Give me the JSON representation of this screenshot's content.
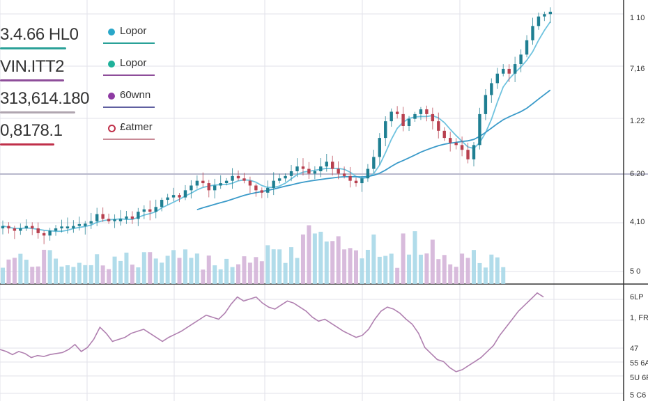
{
  "colors": {
    "bull": "#1f7f92",
    "bear": "#b8404f",
    "ma_short": "#6fc3df",
    "ma_long": "#3a9ac9",
    "rsi": "#b080b0",
    "vol_up": "#a8d8e8",
    "vol_down": "#d4b4d8",
    "grid": "#e2e2ea"
  },
  "readout": [
    {
      "value": "3.4.66 HL0",
      "color": "#2aa198"
    },
    {
      "value": "VIN.ITT2",
      "color": "#8e4e9a"
    },
    {
      "value": "313,614.180",
      "color": "#b0a6b0"
    },
    {
      "value": "0,8178.1",
      "color": "#c0304a"
    }
  ],
  "legend": [
    {
      "label": "Lopor",
      "dot_color": "#2aa7c9",
      "ul_color": "#2aa198"
    },
    {
      "label": "Lopor",
      "dot_color": "#1fb19a",
      "ul_color": "#8e4e9a"
    },
    {
      "label": "60wnn",
      "dot_color": "#8e3aa3",
      "ul_color": "#5f5fa0"
    },
    {
      "label": "£atmer",
      "dot_color": "#c0304a",
      "ul_color": "#c88a96",
      "hollow": true
    }
  ],
  "price_axis_labels": [
    "1 10",
    "7,16",
    "1.22",
    "6.20",
    "4,10",
    "5 0"
  ],
  "rsi_axis_labels": [
    "6LP",
    "1, FR",
    "47",
    "55 6A",
    "5U 6P",
    "5 C6"
  ],
  "chart_data": {
    "type": "line",
    "series": [
      {
        "values": [
          8,
          7,
          6,
          7,
          8,
          7,
          5,
          4,
          6,
          7,
          7,
          7,
          8,
          8,
          9,
          10,
          13,
          11,
          10,
          10,
          11,
          12,
          11,
          14,
          15,
          14,
          16,
          19,
          20,
          21,
          20,
          23,
          25,
          27,
          26,
          23,
          25,
          26,
          27,
          29,
          28,
          27,
          25,
          23,
          22,
          24,
          27,
          28,
          29,
          31,
          33,
          32,
          30,
          31,
          33,
          35,
          32,
          30,
          29,
          27,
          26,
          28,
          32,
          37,
          45,
          52,
          56,
          55,
          50,
          53,
          55,
          57,
          55,
          52,
          48,
          45,
          43,
          42,
          40,
          36,
          42,
          55,
          63,
          68,
          72,
          74,
          72,
          76,
          80,
          86,
          92,
          96,
          97,
          98
        ]
      },
      {
        "values": [
          40,
          38,
          35,
          38,
          36,
          32,
          34,
          33,
          35,
          36,
          37,
          40,
          45,
          38,
          42,
          50,
          62,
          56,
          48,
          50,
          52,
          56,
          58,
          60,
          56,
          52,
          48,
          52,
          55,
          58,
          62,
          66,
          70,
          74,
          72,
          70,
          76,
          85,
          92,
          88,
          90,
          92,
          86,
          82,
          80,
          84,
          88,
          86,
          82,
          78,
          72,
          68,
          70,
          66,
          62,
          58,
          55,
          52,
          54,
          60,
          70,
          78,
          82,
          80,
          76,
          70,
          65,
          56,
          42,
          36,
          30,
          28,
          22,
          18,
          20,
          24,
          28,
          32,
          38,
          44,
          54,
          62,
          70,
          78,
          84,
          90,
          96,
          92
        ]
      }
    ]
  }
}
